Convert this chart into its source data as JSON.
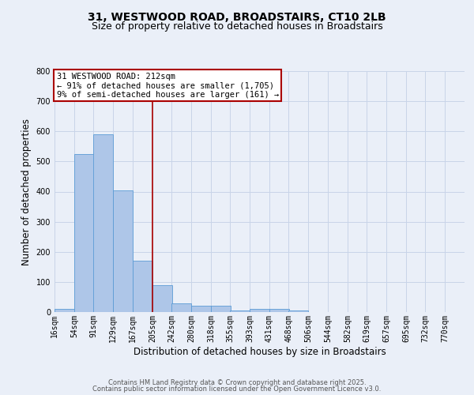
{
  "title_line1": "31, WESTWOOD ROAD, BROADSTAIRS, CT10 2LB",
  "title_line2": "Size of property relative to detached houses in Broadstairs",
  "xlabel": "Distribution of detached houses by size in Broadstairs",
  "ylabel": "Number of detached properties",
  "bar_color": "#aec6e8",
  "bar_edge_color": "#5b9bd5",
  "categories": [
    "16sqm",
    "54sqm",
    "91sqm",
    "129sqm",
    "167sqm",
    "205sqm",
    "242sqm",
    "280sqm",
    "318sqm",
    "355sqm",
    "393sqm",
    "431sqm",
    "468sqm",
    "506sqm",
    "544sqm",
    "582sqm",
    "619sqm",
    "657sqm",
    "695sqm",
    "732sqm",
    "770sqm"
  ],
  "bin_edges": [
    16,
    54,
    91,
    129,
    167,
    205,
    242,
    280,
    318,
    355,
    393,
    431,
    468,
    506,
    544,
    582,
    619,
    657,
    695,
    732,
    770
  ],
  "values": [
    10,
    525,
    590,
    405,
    170,
    90,
    30,
    20,
    22,
    6,
    10,
    10,
    4,
    0,
    0,
    0,
    0,
    0,
    0,
    0
  ],
  "vline_x": 205,
  "annotation_text": "31 WESTWOOD ROAD: 212sqm\n← 91% of detached houses are smaller (1,705)\n9% of semi-detached houses are larger (161) →",
  "annotation_box_color": "#ffffff",
  "annotation_border_color": "#aa0000",
  "grid_color": "#c8d4e8",
  "background_color": "#eaeff8",
  "ylim": [
    0,
    800
  ],
  "yticks": [
    0,
    100,
    200,
    300,
    400,
    500,
    600,
    700,
    800
  ],
  "footer_line1": "Contains HM Land Registry data © Crown copyright and database right 2025.",
  "footer_line2": "Contains public sector information licensed under the Open Government Licence v3.0.",
  "title_fontsize": 10,
  "subtitle_fontsize": 9,
  "axis_label_fontsize": 8.5,
  "tick_fontsize": 7,
  "annotation_fontsize": 7.5,
  "footer_fontsize": 6
}
